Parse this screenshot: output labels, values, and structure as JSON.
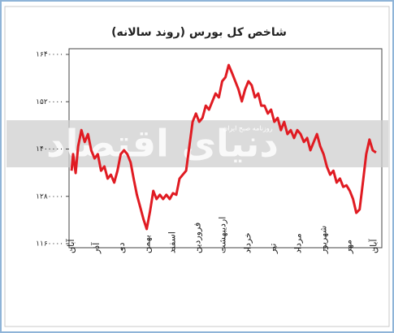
{
  "chart_data": {
    "type": "line",
    "title": "شاخص کل بورس (روند سالانه)",
    "watermark": "دنیای اقتصاد",
    "watermark_subtitle": "روزنامه صبح ایران",
    "xlim": [
      -0.1,
      12.3
    ],
    "xticks": [
      {
        "value": 0,
        "label": "آبان"
      },
      {
        "value": 1,
        "label": "آذر"
      },
      {
        "value": 2,
        "label": "دی"
      },
      {
        "value": 3,
        "label": "بهمن"
      },
      {
        "value": 4,
        "label": "اسفند"
      },
      {
        "value": 5,
        "label": "فروردین"
      },
      {
        "value": 6,
        "label": "اردیبهشت"
      },
      {
        "value": 7,
        "label": "خرداد"
      },
      {
        "value": 8,
        "label": "تیر"
      },
      {
        "value": 9,
        "label": "مرداد"
      },
      {
        "value": 10,
        "label": "شهریور"
      },
      {
        "value": 11,
        "label": "مهر"
      },
      {
        "value": 12,
        "label": "آبان"
      }
    ],
    "ylim": [
      1160000,
      1640000
    ],
    "yticks": [
      {
        "value": 1160000,
        "label": "۱۱۶۰۰۰۰"
      },
      {
        "value": 1280000,
        "label": "۱۲۸۰۰۰۰"
      },
      {
        "value": 1400000,
        "label": "۱۴۰۰۰۰۰"
      },
      {
        "value": 1520000,
        "label": "۱۵۲۰۰۰۰"
      },
      {
        "value": 1640000,
        "label": "۱۶۴۰۰۰۰"
      }
    ],
    "series": [
      {
        "color": "#e01b22",
        "x": [
          0,
          0.06,
          0.16,
          0.26,
          0.39,
          0.52,
          0.65,
          0.78,
          0.91,
          1.04,
          1.17,
          1.3,
          1.43,
          1.56,
          1.69,
          1.82,
          1.95,
          2.08,
          2.21,
          2.34,
          2.46,
          2.59,
          2.72,
          2.85,
          2.98,
          3.11,
          3.24,
          3.37,
          3.5,
          3.63,
          3.76,
          3.89,
          4.02,
          4.15,
          4.28,
          4.41,
          4.54,
          4.67,
          4.8,
          4.93,
          5.06,
          5.19,
          5.32,
          5.45,
          5.58,
          5.71,
          5.84,
          5.97,
          6.1,
          6.23,
          6.36,
          6.49,
          6.62,
          6.75,
          6.88,
          7.01,
          7.14,
          7.27,
          7.4,
          7.52,
          7.65,
          7.78,
          7.91,
          8.04,
          8.17,
          8.3,
          8.43,
          8.56,
          8.69,
          8.82,
          8.95,
          9.08,
          9.21,
          9.34,
          9.47,
          9.6,
          9.73,
          9.86,
          9.99,
          10.12,
          10.25,
          10.38,
          10.51,
          10.64,
          10.77,
          10.9,
          11.03,
          11.16,
          11.29,
          11.42,
          11.55,
          11.68,
          11.81,
          11.94,
          12.07
        ],
        "values": [
          1345000,
          1387000,
          1339000,
          1407000,
          1448000,
          1418000,
          1438000,
          1397000,
          1376000,
          1387000,
          1345000,
          1356000,
          1325000,
          1335000,
          1315000,
          1345000,
          1387000,
          1397000,
          1387000,
          1366000,
          1325000,
          1284000,
          1253000,
          1222000,
          1197000,
          1242000,
          1294000,
          1273000,
          1284000,
          1273000,
          1284000,
          1273000,
          1288000,
          1284000,
          1325000,
          1335000,
          1345000,
          1407000,
          1469000,
          1490000,
          1469000,
          1479000,
          1510000,
          1500000,
          1521000,
          1541000,
          1531000,
          1572000,
          1582000,
          1613000,
          1593000,
          1572000,
          1551000,
          1521000,
          1551000,
          1572000,
          1562000,
          1531000,
          1541000,
          1510000,
          1510000,
          1490000,
          1500000,
          1469000,
          1479000,
          1448000,
          1469000,
          1438000,
          1448000,
          1428000,
          1448000,
          1438000,
          1418000,
          1428000,
          1397000,
          1418000,
          1438000,
          1407000,
          1387000,
          1356000,
          1335000,
          1345000,
          1315000,
          1325000,
          1304000,
          1308000,
          1294000,
          1273000,
          1238000,
          1247000,
          1315000,
          1387000,
          1424000,
          1397000,
          1391000
        ]
      }
    ]
  }
}
